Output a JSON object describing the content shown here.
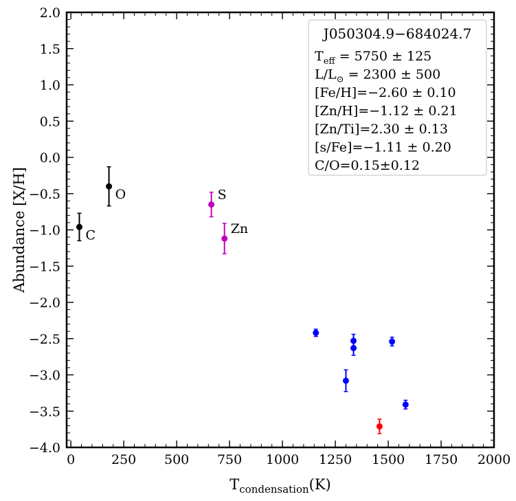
{
  "chart_data": {
    "type": "scatter",
    "title": "",
    "xlabel": {
      "main": "T",
      "sub": "condensation",
      "tail": "(K)"
    },
    "ylabel": "Abundance [X/H]",
    "xlim": [
      -20,
      2000
    ],
    "ylim": [
      -4.0,
      2.0
    ],
    "x_ticks": [
      0,
      250,
      500,
      750,
      1000,
      1250,
      1500,
      1750,
      2000
    ],
    "x_tick_labels": [
      "0",
      "250",
      "500",
      "750",
      "1000",
      "1250",
      "1500",
      "1750",
      "2000"
    ],
    "y_ticks": [
      -4.0,
      -3.5,
      -3.0,
      -2.5,
      -2.0,
      -1.5,
      -1.0,
      -0.5,
      0.0,
      0.5,
      1.0,
      1.5,
      2.0
    ],
    "y_tick_labels": [
      "−4.0",
      "−3.5",
      "−3.0",
      "−2.5",
      "−2.0",
      "−1.5",
      "−1.0",
      "−0.5",
      "0.0",
      "0.5",
      "1.0",
      "1.5",
      "2.0"
    ],
    "grid": false,
    "legend": {
      "placement": "top-right",
      "title": "J050304.9−684024.7",
      "lines": [
        {
          "prefix": "T",
          "sub": "eff",
          "text": " = 5750 ± 125"
        },
        {
          "prefix": "L/L",
          "sub": "⊙",
          "text": " = 2300 ± 500"
        },
        {
          "prefix": "",
          "sub": "",
          "text": "[Fe/H]=−2.60 ± 0.10"
        },
        {
          "prefix": "",
          "sub": "",
          "text": "[Zn/H]=−1.12 ± 0.21"
        },
        {
          "prefix": "",
          "sub": "",
          "text": "[Zn/Ti]=2.30 ± 0.13"
        },
        {
          "prefix": "",
          "sub": "",
          "text": "[s/Fe]=−1.11 ± 0.20"
        },
        {
          "prefix": "",
          "sub": "",
          "text": "C/O=0.15±0.12"
        }
      ]
    },
    "colors": {
      "C_O": "#000000",
      "S_Zn": "#c000c0",
      "other": "#0000ff",
      "Fe": "#ff0000"
    },
    "series": [
      {
        "group": "C_O",
        "color": "#000000",
        "points": [
          {
            "x": 40,
            "y": -0.96,
            "err": 0.19,
            "label": "C"
          },
          {
            "x": 180,
            "y": -0.4,
            "err": 0.27,
            "label": "O"
          }
        ]
      },
      {
        "group": "S_Zn",
        "color": "#c000c0",
        "points": [
          {
            "x": 664,
            "y": -0.65,
            "err": 0.17,
            "label": "S"
          },
          {
            "x": 726,
            "y": -1.12,
            "err": 0.21,
            "label": "Zn"
          }
        ]
      },
      {
        "group": "other",
        "color": "#0000ff",
        "points": [
          {
            "x": 1158,
            "y": -2.42,
            "err": 0.05,
            "label": ""
          },
          {
            "x": 1300,
            "y": -3.08,
            "err": 0.15,
            "label": ""
          },
          {
            "x": 1336,
            "y": -2.53,
            "err": 0.09,
            "label": ""
          },
          {
            "x": 1336,
            "y": -2.63,
            "err": 0.1,
            "label": ""
          },
          {
            "x": 1518,
            "y": -2.54,
            "err": 0.06,
            "label": ""
          },
          {
            "x": 1582,
            "y": -3.41,
            "err": 0.06,
            "label": ""
          }
        ]
      },
      {
        "group": "Fe",
        "color": "#ff0000",
        "points": [
          {
            "x": 1459,
            "y": -3.71,
            "err": 0.1,
            "label": ""
          }
        ]
      }
    ]
  }
}
